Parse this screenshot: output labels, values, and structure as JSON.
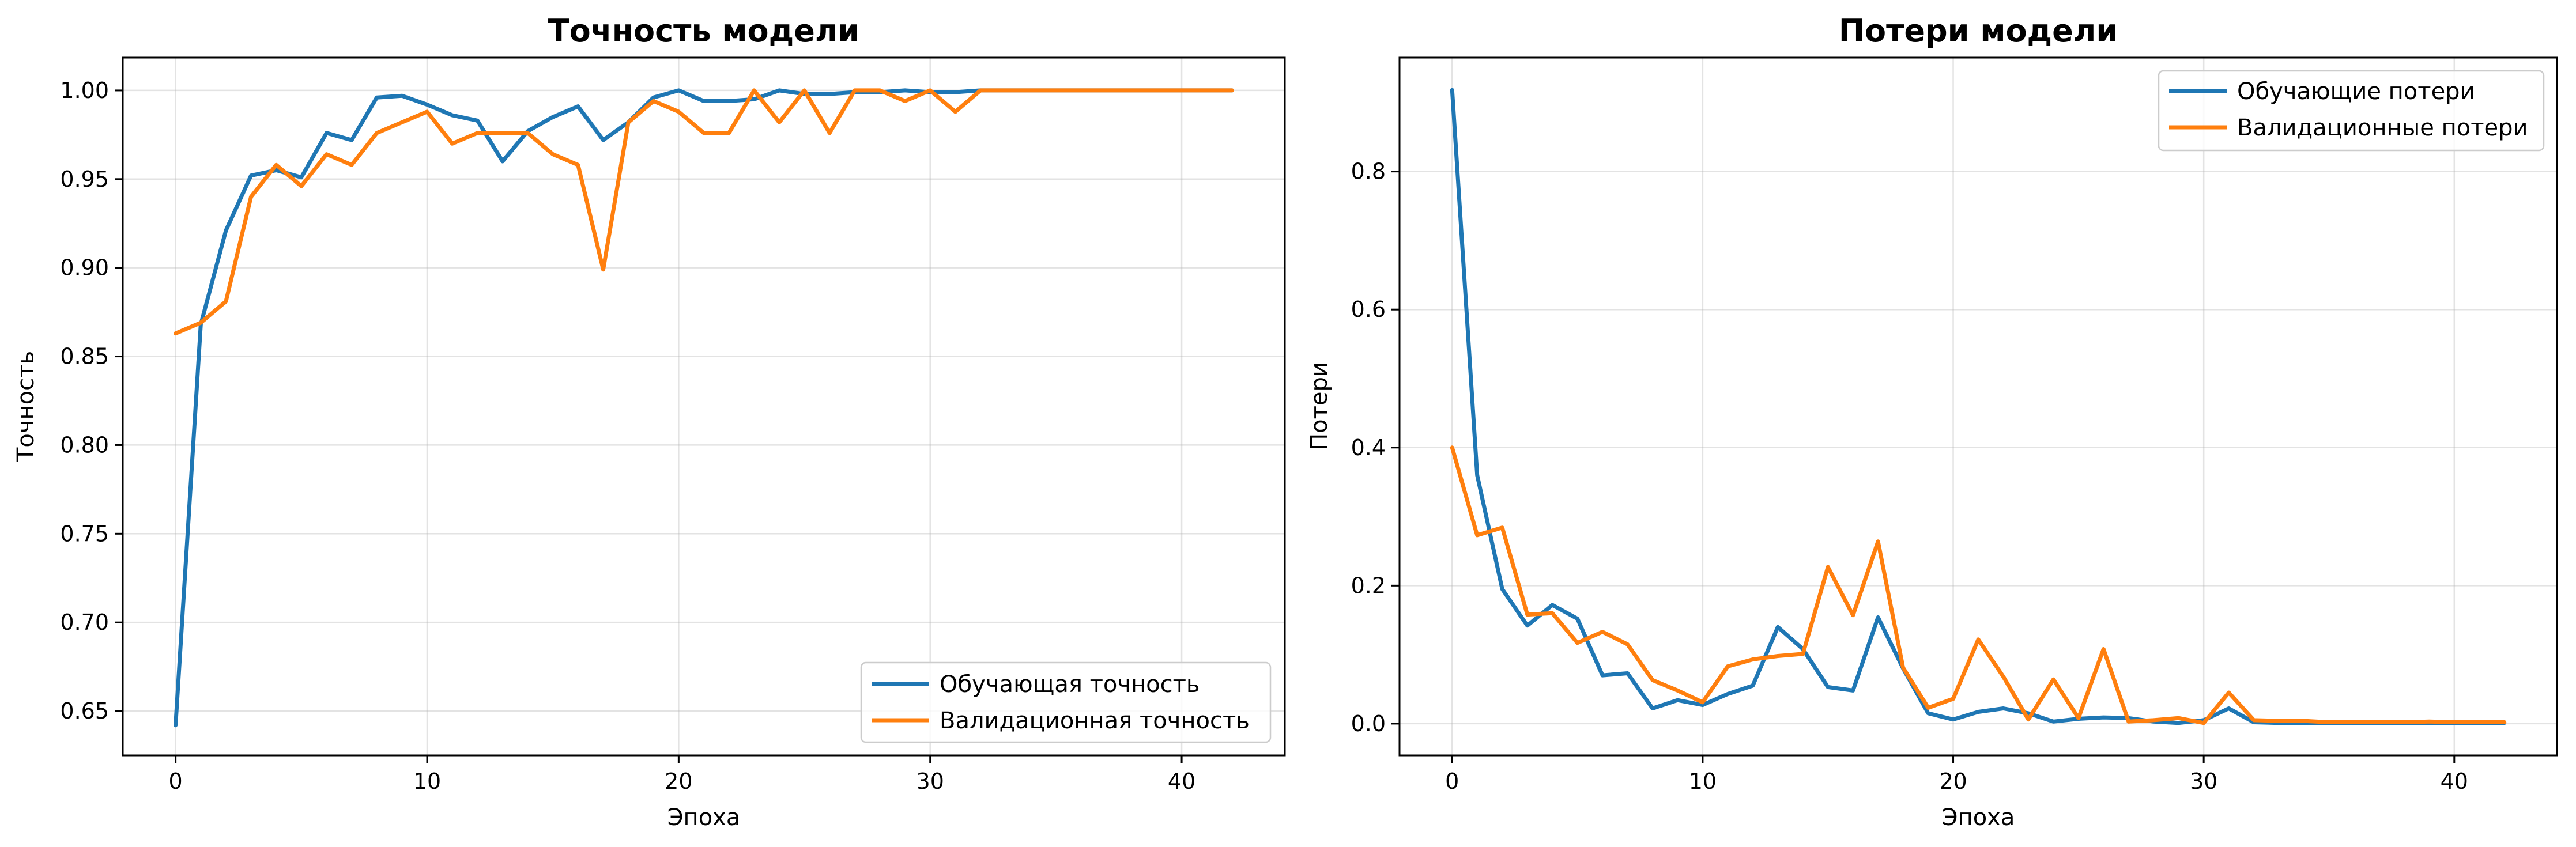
{
  "chart_data": [
    {
      "type": "line",
      "title": "Точность модели",
      "xlabel": "Эпоха",
      "ylabel": "Точность",
      "xlim": [
        -2.1,
        44.1
      ],
      "ylim": [
        0.625,
        1.0185
      ],
      "xticks": [
        0,
        10,
        20,
        30,
        40
      ],
      "xtick_labels": [
        "0",
        "10",
        "20",
        "30",
        "40"
      ],
      "yticks": [
        0.65,
        0.7,
        0.75,
        0.8,
        0.85,
        0.9,
        0.95,
        1.0
      ],
      "ytick_labels": [
        "0.65",
        "0.70",
        "0.75",
        "0.80",
        "0.85",
        "0.90",
        "0.95",
        "1.00"
      ],
      "grid": true,
      "legend_position": "lower-right",
      "x": [
        0,
        1,
        2,
        3,
        4,
        5,
        6,
        7,
        8,
        9,
        10,
        11,
        12,
        13,
        14,
        15,
        16,
        17,
        18,
        19,
        20,
        21,
        22,
        23,
        24,
        25,
        26,
        27,
        28,
        29,
        30,
        31,
        32,
        33,
        34,
        35,
        36,
        37,
        38,
        39,
        40,
        41,
        42
      ],
      "series": [
        {
          "name": "Обучающая точность",
          "color": "#1f77b4",
          "values": [
            0.642,
            0.868,
            0.921,
            0.952,
            0.955,
            0.951,
            0.976,
            0.972,
            0.996,
            0.997,
            0.992,
            0.986,
            0.983,
            0.96,
            0.977,
            0.985,
            0.991,
            0.972,
            0.982,
            0.996,
            1.0,
            0.994,
            0.994,
            0.995,
            1.0,
            0.998,
            0.998,
            0.999,
            0.999,
            1.0,
            0.999,
            0.999,
            1.0,
            1.0,
            1.0,
            1.0,
            1.0,
            1.0,
            1.0,
            1.0,
            1.0,
            1.0,
            1.0
          ]
        },
        {
          "name": "Валидационная точность",
          "color": "#ff7f0e",
          "values": [
            0.863,
            0.869,
            0.881,
            0.94,
            0.958,
            0.946,
            0.964,
            0.958,
            0.976,
            0.982,
            0.988,
            0.97,
            0.976,
            0.976,
            0.976,
            0.964,
            0.958,
            0.899,
            0.982,
            0.994,
            0.988,
            0.976,
            0.976,
            1.0,
            0.982,
            1.0,
            0.976,
            1.0,
            1.0,
            0.994,
            1.0,
            0.988,
            1.0,
            1.0,
            1.0,
            1.0,
            1.0,
            1.0,
            1.0,
            1.0,
            1.0,
            1.0,
            1.0
          ]
        }
      ]
    },
    {
      "type": "line",
      "title": "Потери модели",
      "xlabel": "Эпоха",
      "ylabel": "Потери",
      "xlim": [
        -2.1,
        44.1
      ],
      "ylim": [
        -0.046,
        0.965
      ],
      "xticks": [
        0,
        10,
        20,
        30,
        40
      ],
      "xtick_labels": [
        "0",
        "10",
        "20",
        "30",
        "40"
      ],
      "yticks": [
        0.0,
        0.2,
        0.4,
        0.6,
        0.8
      ],
      "ytick_labels": [
        "0.0",
        "0.2",
        "0.4",
        "0.6",
        "0.8"
      ],
      "grid": true,
      "legend_position": "upper-right",
      "x": [
        0,
        1,
        2,
        3,
        4,
        5,
        6,
        7,
        8,
        9,
        10,
        11,
        12,
        13,
        14,
        15,
        16,
        17,
        18,
        19,
        20,
        21,
        22,
        23,
        24,
        25,
        26,
        27,
        28,
        29,
        30,
        31,
        32,
        33,
        34,
        35,
        36,
        37,
        38,
        39,
        40,
        41,
        42
      ],
      "series": [
        {
          "name": "Обучающие потери",
          "color": "#1f77b4",
          "values": [
            0.918,
            0.36,
            0.195,
            0.142,
            0.172,
            0.152,
            0.07,
            0.073,
            0.022,
            0.034,
            0.027,
            0.043,
            0.055,
            0.14,
            0.108,
            0.053,
            0.048,
            0.154,
            0.08,
            0.015,
            0.006,
            0.017,
            0.022,
            0.015,
            0.003,
            0.007,
            0.009,
            0.008,
            0.003,
            0.001,
            0.005,
            0.022,
            0.002,
            0.001,
            0.001,
            0.001,
            0.001,
            0.001,
            0.001,
            0.001,
            0.001,
            0.001,
            0.001
          ]
        },
        {
          "name": "Валидационные потери",
          "color": "#ff7f0e",
          "values": [
            0.4,
            0.273,
            0.284,
            0.158,
            0.16,
            0.117,
            0.133,
            0.115,
            0.063,
            0.048,
            0.031,
            0.083,
            0.093,
            0.098,
            0.101,
            0.227,
            0.157,
            0.264,
            0.081,
            0.023,
            0.036,
            0.122,
            0.068,
            0.006,
            0.064,
            0.008,
            0.108,
            0.003,
            0.005,
            0.008,
            0.001,
            0.045,
            0.005,
            0.004,
            0.004,
            0.002,
            0.002,
            0.002,
            0.002,
            0.003,
            0.002,
            0.002,
            0.002
          ]
        }
      ]
    }
  ]
}
